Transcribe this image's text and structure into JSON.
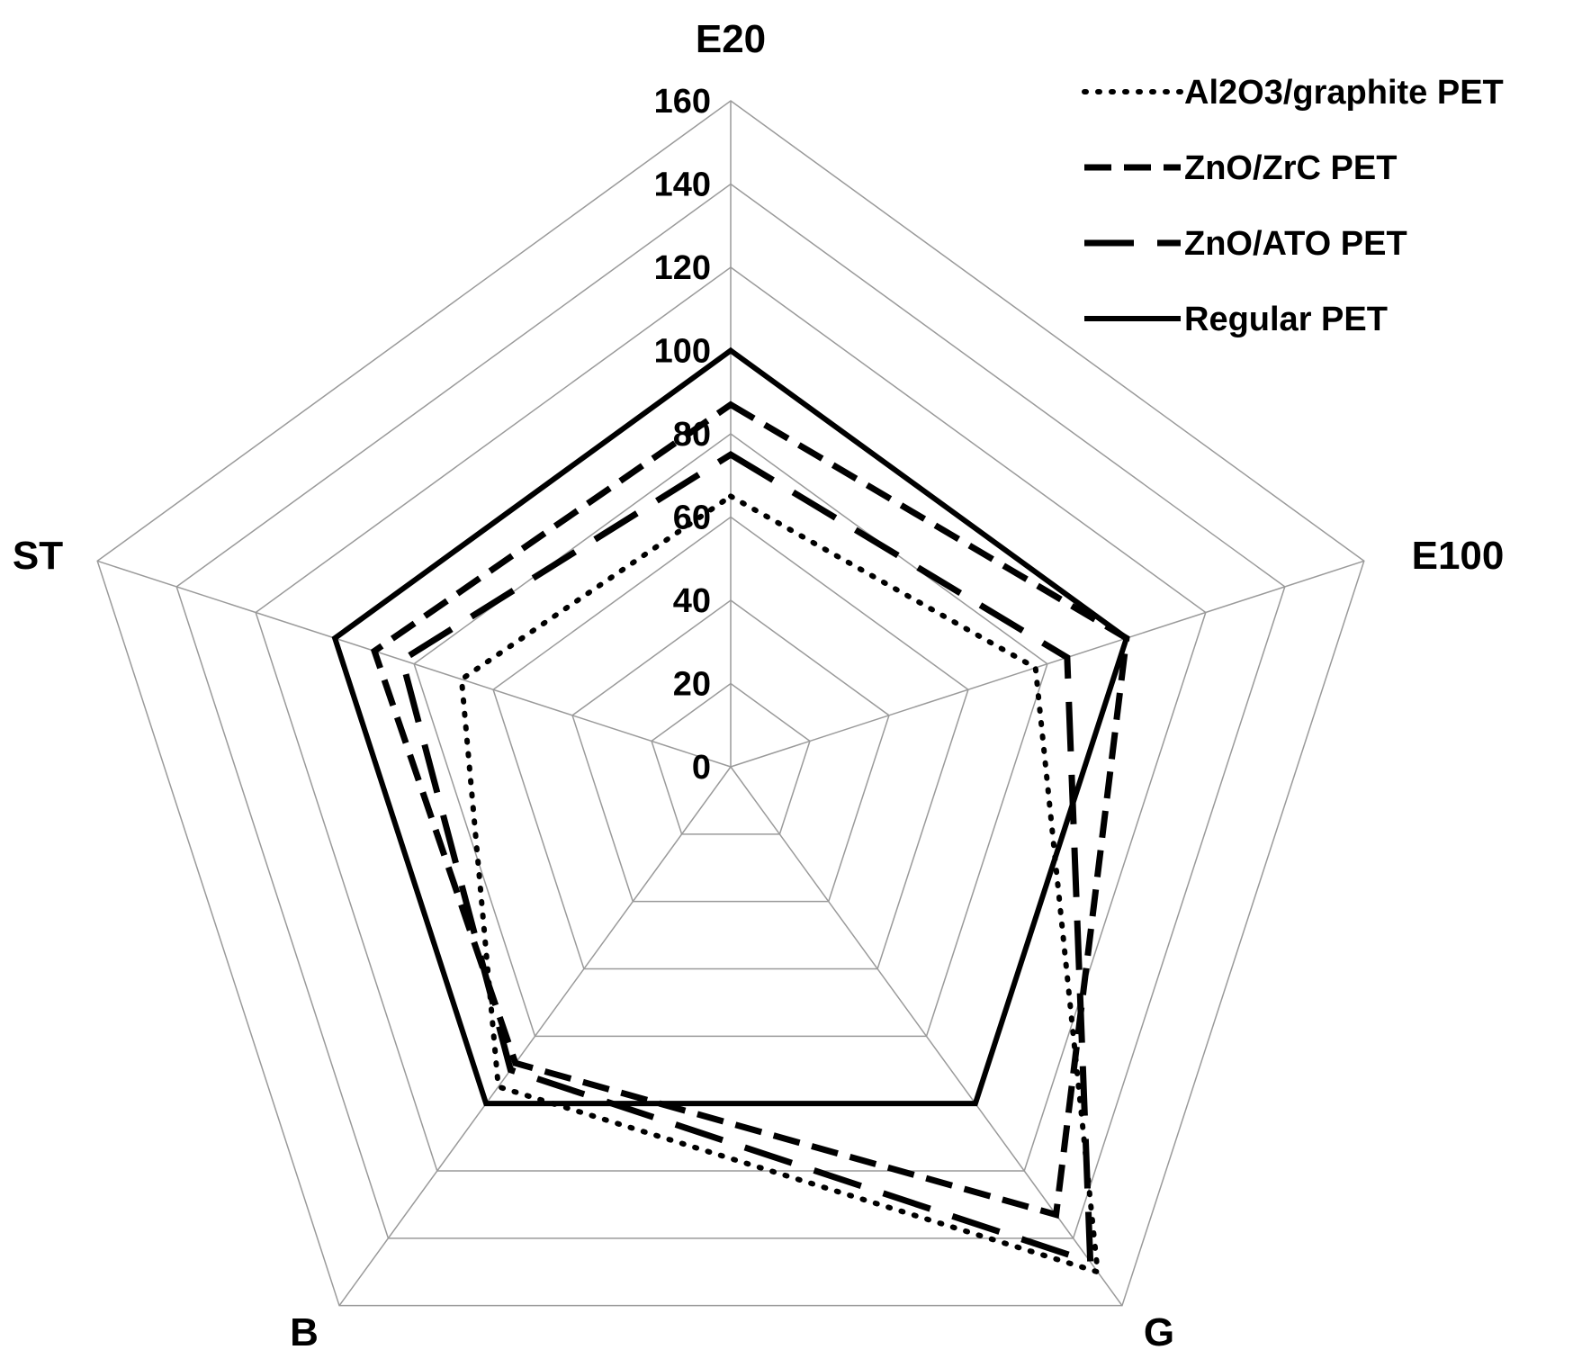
{
  "chart_data": {
    "type": "radar",
    "axes": [
      "E20",
      "E100",
      "G",
      "B",
      "ST"
    ],
    "ticks": [
      "0",
      "20",
      "40",
      "60",
      "80",
      "100",
      "120",
      "140",
      "160"
    ],
    "range": [
      0,
      160
    ],
    "grid": true,
    "legend_position": "top-right",
    "series": [
      {
        "name": "Al2O3/graphite PET",
        "style": "dotted",
        "values": [
          65,
          77,
          150,
          95,
          68
        ]
      },
      {
        "name": "ZnO/ZrC PET",
        "style": "dashed",
        "values": [
          87,
          100,
          133,
          88,
          90
        ]
      },
      {
        "name": "ZnO/ATO PET",
        "style": "long-dashed",
        "values": [
          75,
          85,
          147,
          90,
          83
        ]
      },
      {
        "name": "Regular PET",
        "style": "solid",
        "values": [
          100,
          100,
          100,
          100,
          100
        ]
      }
    ]
  }
}
